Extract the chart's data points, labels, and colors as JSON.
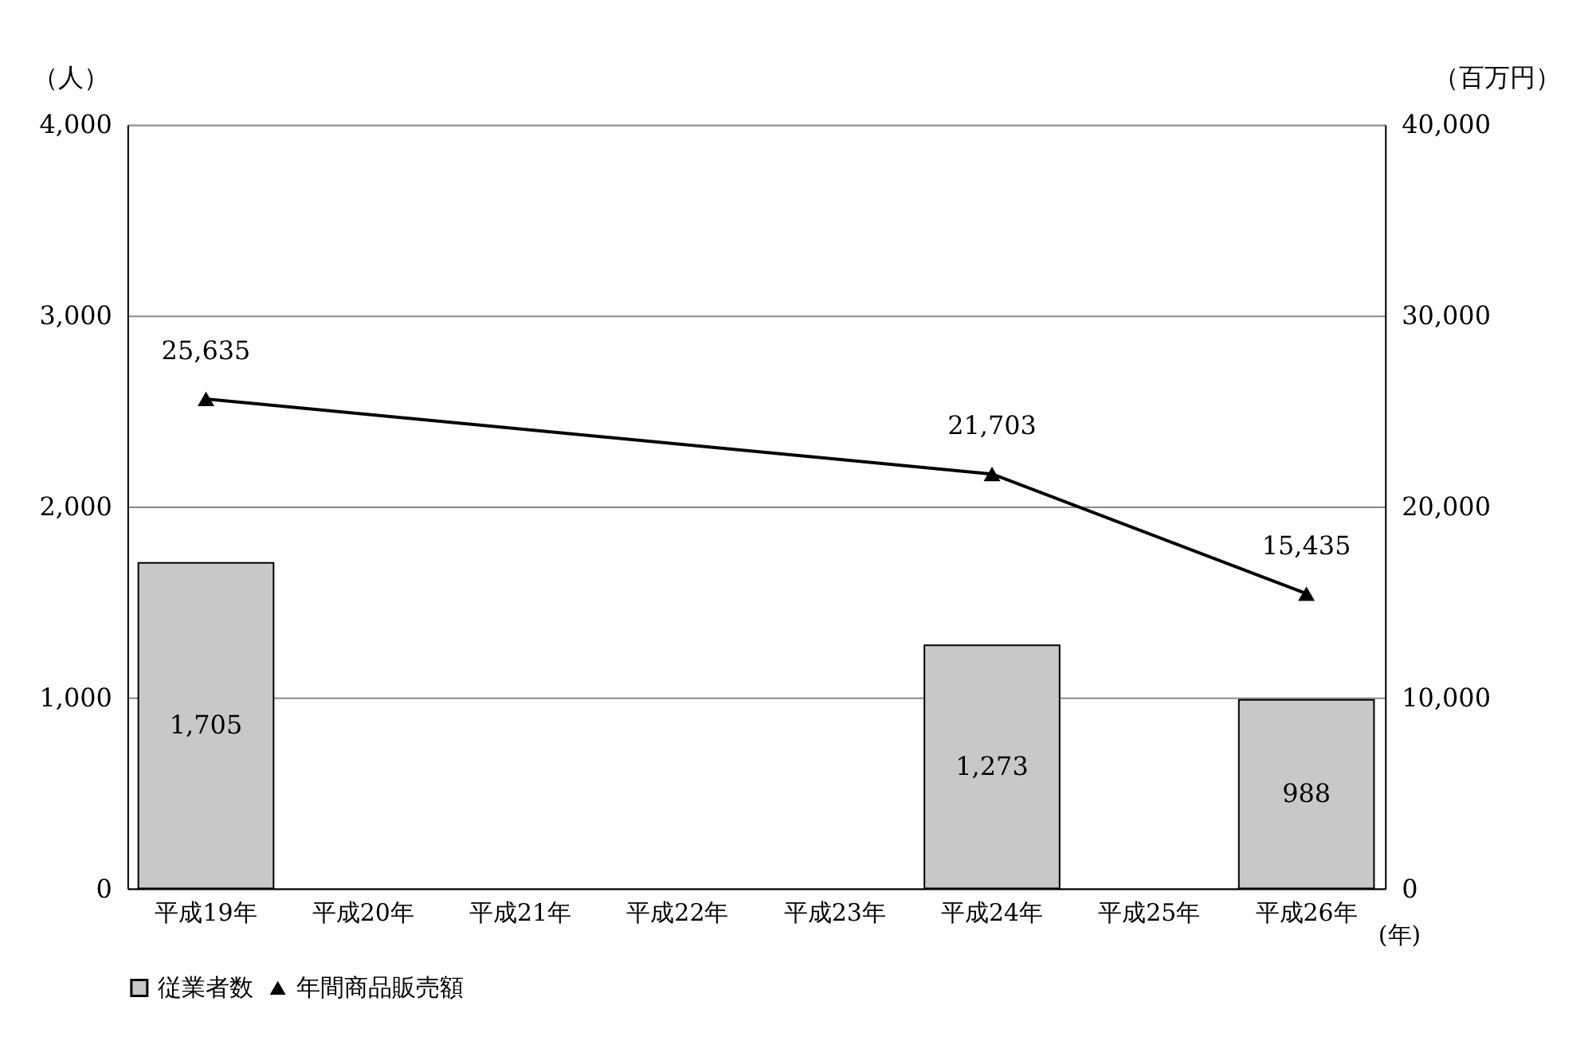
{
  "chart_data": {
    "type": "bar",
    "categories": [
      "平成19年",
      "平成20年",
      "平成21年",
      "平成22年",
      "平成23年",
      "平成24年",
      "平成25年",
      "平成26年"
    ],
    "xlabel": "(年)",
    "ylabel": "（人）",
    "y2label": "（百万円）",
    "series": [
      {
        "name": "従業者数",
        "color": "#c8c8c8",
        "values": [
          1705,
          null,
          null,
          null,
          null,
          1273,
          null,
          988
        ],
        "value_labels": [
          "1,705",
          null,
          null,
          null,
          null,
          "1,273",
          null,
          "988"
        ]
      },
      {
        "name": "年間商品販売額",
        "type": "line",
        "axis": "y2",
        "color": "#000000",
        "marker": "triangle",
        "values": [
          25635,
          null,
          null,
          null,
          null,
          21703,
          null,
          15435
        ],
        "value_labels": [
          "25,635",
          null,
          null,
          null,
          null,
          "21,703",
          null,
          "15,435"
        ]
      }
    ],
    "ylim": [
      0,
      4000
    ],
    "yticks": [
      0,
      {
        "value": 1000,
        "label": "1,000"
      },
      {
        "value": 2000,
        "label": "2,000"
      },
      {
        "value": 3000,
        "label": "3,000"
      },
      {
        "value": 4000,
        "label": "4,000"
      }
    ],
    "y2lim": [
      0,
      40000
    ],
    "y2ticks": [
      0,
      {
        "value": 10000,
        "label": "10,000"
      },
      {
        "value": 20000,
        "label": "20,000"
      },
      {
        "value": 30000,
        "label": "30,000"
      },
      {
        "value": 40000,
        "label": "40,000"
      }
    ],
    "grid": "y",
    "legend": "bottom"
  }
}
